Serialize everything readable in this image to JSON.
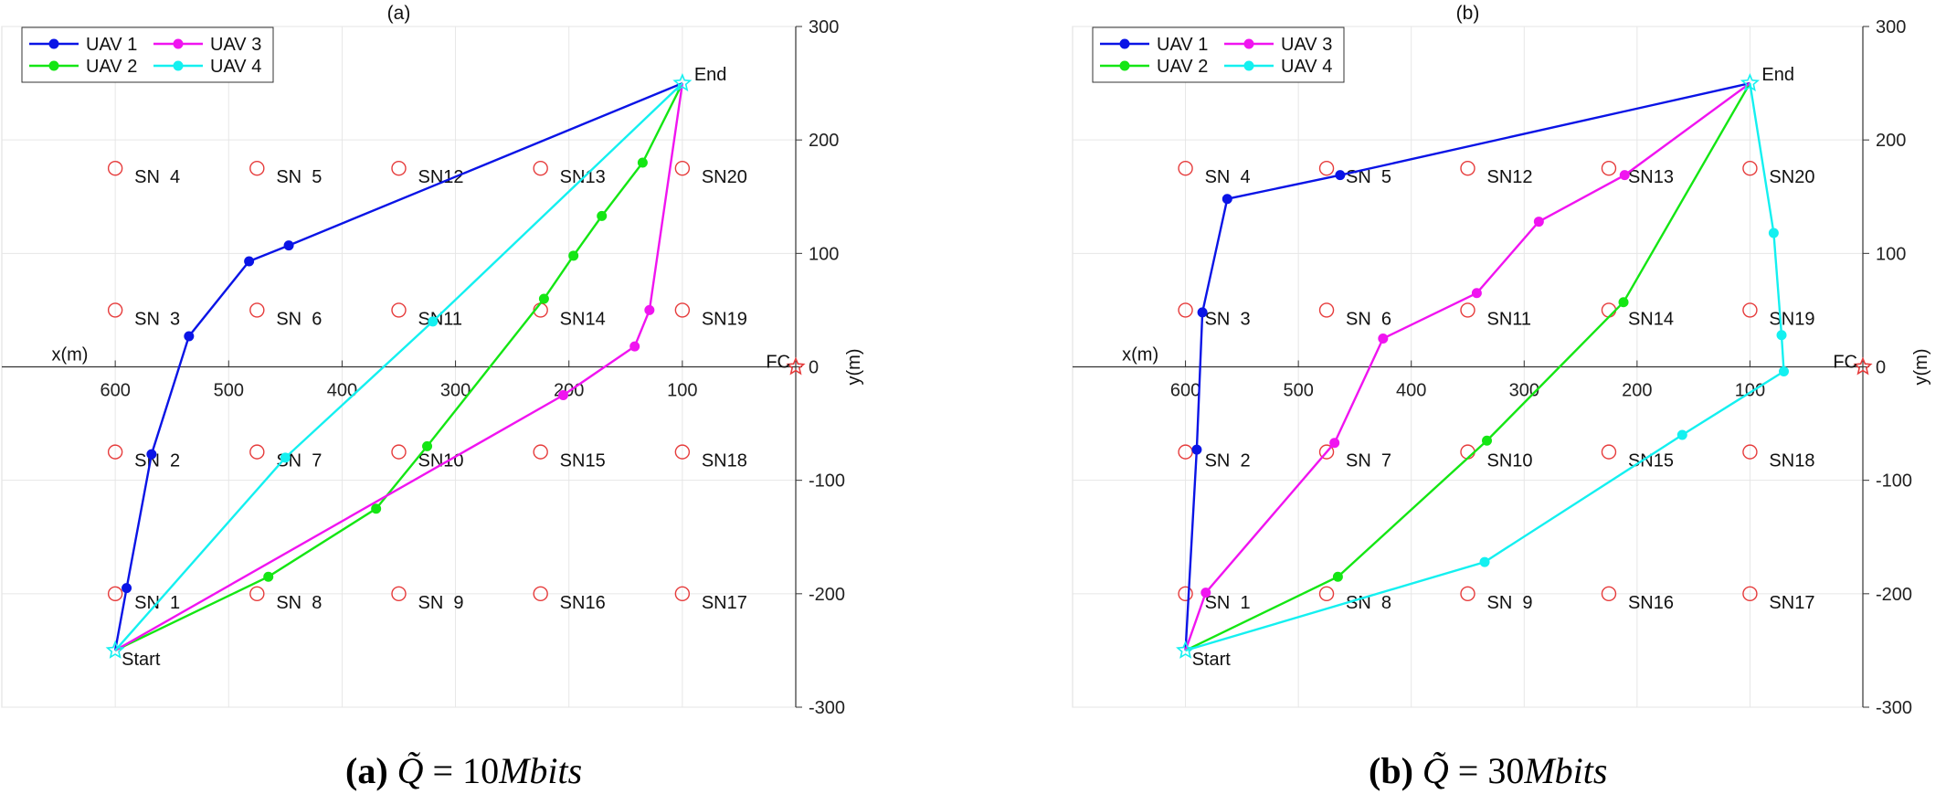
{
  "captions": [
    {
      "tag": "(a)",
      "pre": "Q̃",
      "eq": "= 10",
      "unit": "Mbits"
    },
    {
      "tag": "(b)",
      "pre": "Q̃",
      "eq": "= 30",
      "unit": "Mbits"
    }
  ],
  "colors": {
    "UAV 1": "#0a14e6",
    "UAV 2": "#14e614",
    "UAV 3": "#f014f0",
    "UAV 4": "#14f0f0",
    "sensor": "#e63c3c",
    "fc": "#e63c3c"
  },
  "chart_data": [
    {
      "type": "line",
      "title": "(a)",
      "xlabel": "x(m)",
      "ylabel": "y(m)",
      "x_ticks": [
        "600",
        "500",
        "400",
        "300",
        "200",
        "100"
      ],
      "y_ticks": [
        "300",
        "200",
        "100",
        "0",
        "-100",
        "-200",
        "-300"
      ],
      "x_tick_values": [
        600,
        500,
        400,
        300,
        200,
        100
      ],
      "y_tick_values": [
        300,
        200,
        100,
        0,
        -100,
        -200,
        -300
      ],
      "xlim": [
        700,
        0
      ],
      "ylim": [
        -300,
        300
      ],
      "x_reversed": true,
      "grid": true,
      "legend_position": "top-left",
      "start_label": "Start",
      "end_label": "End",
      "fc_label": "FC",
      "sensors": [
        {
          "name": "SN  1",
          "x": 600,
          "y": -200
        },
        {
          "name": "SN  2",
          "x": 600,
          "y": -75
        },
        {
          "name": "SN  3",
          "x": 600,
          "y": 50
        },
        {
          "name": "SN  4",
          "x": 600,
          "y": 175
        },
        {
          "name": "SN  5",
          "x": 475,
          "y": 175
        },
        {
          "name": "SN  6",
          "x": 475,
          "y": 50
        },
        {
          "name": "SN  7",
          "x": 475,
          "y": -75
        },
        {
          "name": "SN  8",
          "x": 475,
          "y": -200
        },
        {
          "name": "SN  9",
          "x": 350,
          "y": -200
        },
        {
          "name": "SN10",
          "x": 350,
          "y": -75
        },
        {
          "name": "SN11",
          "x": 350,
          "y": 50
        },
        {
          "name": "SN12",
          "x": 350,
          "y": 175
        },
        {
          "name": "SN13",
          "x": 225,
          "y": 175
        },
        {
          "name": "SN14",
          "x": 225,
          "y": 50
        },
        {
          "name": "SN15",
          "x": 225,
          "y": -75
        },
        {
          "name": "SN16",
          "x": 225,
          "y": -200
        },
        {
          "name": "SN17",
          "x": 100,
          "y": -200
        },
        {
          "name": "SN18",
          "x": 100,
          "y": -75
        },
        {
          "name": "SN19",
          "x": 100,
          "y": 50
        },
        {
          "name": "SN20",
          "x": 100,
          "y": 175
        }
      ],
      "start": {
        "x": 600,
        "y": -250
      },
      "end": {
        "x": 100,
        "y": 250
      },
      "fc": {
        "x": 0,
        "y": 0
      },
      "series": [
        {
          "name": "UAV 1",
          "points": [
            [
              600,
              -250
            ],
            [
              590,
              -195
            ],
            [
              568,
              -77
            ],
            [
              535,
              27
            ],
            [
              482,
              93
            ],
            [
              447,
              107
            ],
            [
              100,
              250
            ]
          ]
        },
        {
          "name": "UAV 2",
          "points": [
            [
              600,
              -250
            ],
            [
              465,
              -185
            ],
            [
              370,
              -125
            ],
            [
              325,
              -70
            ],
            [
              222,
              60
            ],
            [
              196,
              98
            ],
            [
              171,
              133
            ],
            [
              135,
              180
            ],
            [
              100,
              250
            ]
          ]
        },
        {
          "name": "UAV 3",
          "points": [
            [
              600,
              -250
            ],
            [
              205,
              -25
            ],
            [
              142,
              18
            ],
            [
              129,
              50
            ],
            [
              100,
              250
            ]
          ]
        },
        {
          "name": "UAV 4",
          "points": [
            [
              600,
              -250
            ],
            [
              450,
              -80
            ],
            [
              320,
              40
            ],
            [
              100,
              250
            ]
          ]
        }
      ]
    },
    {
      "type": "line",
      "title": "(b)",
      "xlabel": "x(m)",
      "ylabel": "y(m)",
      "x_ticks": [
        "600",
        "500",
        "400",
        "300",
        "200",
        "100"
      ],
      "y_ticks": [
        "300",
        "200",
        "100",
        "0",
        "-100",
        "-200",
        "-300"
      ],
      "x_tick_values": [
        600,
        500,
        400,
        300,
        200,
        100
      ],
      "y_tick_values": [
        300,
        200,
        100,
        0,
        -100,
        -200,
        -300
      ],
      "xlim": [
        700,
        0
      ],
      "ylim": [
        -300,
        300
      ],
      "x_reversed": true,
      "grid": true,
      "legend_position": "top-left",
      "start_label": "Start",
      "end_label": "End",
      "fc_label": "FC",
      "sensors": [
        {
          "name": "SN  1",
          "x": 600,
          "y": -200
        },
        {
          "name": "SN  2",
          "x": 600,
          "y": -75
        },
        {
          "name": "SN  3",
          "x": 600,
          "y": 50
        },
        {
          "name": "SN  4",
          "x": 600,
          "y": 175
        },
        {
          "name": "SN  5",
          "x": 475,
          "y": 175
        },
        {
          "name": "SN  6",
          "x": 475,
          "y": 50
        },
        {
          "name": "SN  7",
          "x": 475,
          "y": -75
        },
        {
          "name": "SN  8",
          "x": 475,
          "y": -200
        },
        {
          "name": "SN  9",
          "x": 350,
          "y": -200
        },
        {
          "name": "SN10",
          "x": 350,
          "y": -75
        },
        {
          "name": "SN11",
          "x": 350,
          "y": 50
        },
        {
          "name": "SN12",
          "x": 350,
          "y": 175
        },
        {
          "name": "SN13",
          "x": 225,
          "y": 175
        },
        {
          "name": "SN14",
          "x": 225,
          "y": 50
        },
        {
          "name": "SN15",
          "x": 225,
          "y": -75
        },
        {
          "name": "SN16",
          "x": 225,
          "y": -200
        },
        {
          "name": "SN17",
          "x": 100,
          "y": -200
        },
        {
          "name": "SN18",
          "x": 100,
          "y": -75
        },
        {
          "name": "SN19",
          "x": 100,
          "y": 50
        },
        {
          "name": "SN20",
          "x": 100,
          "y": 175
        }
      ],
      "start": {
        "x": 600,
        "y": -250
      },
      "end": {
        "x": 100,
        "y": 250
      },
      "fc": {
        "x": 0,
        "y": 0
      },
      "series": [
        {
          "name": "UAV 1",
          "points": [
            [
              600,
              -250
            ],
            [
              590,
              -73
            ],
            [
              585,
              48
            ],
            [
              563,
              148
            ],
            [
              463,
              169
            ],
            [
              100,
              250
            ]
          ]
        },
        {
          "name": "UAV 2",
          "points": [
            [
              600,
              -250
            ],
            [
              465,
              -185
            ],
            [
              333,
              -65
            ],
            [
              212,
              57
            ],
            [
              100,
              250
            ]
          ]
        },
        {
          "name": "UAV 3",
          "points": [
            [
              600,
              -250
            ],
            [
              582,
              -199
            ],
            [
              468,
              -67
            ],
            [
              425,
              25
            ],
            [
              342,
              65
            ],
            [
              287,
              128
            ],
            [
              211,
              169
            ],
            [
              100,
              250
            ]
          ]
        },
        {
          "name": "UAV 4",
          "points": [
            [
              600,
              -250
            ],
            [
              335,
              -172
            ],
            [
              160,
              -60
            ],
            [
              70,
              -4
            ],
            [
              72,
              28
            ],
            [
              79,
              118
            ],
            [
              100,
              250
            ]
          ]
        }
      ]
    }
  ]
}
